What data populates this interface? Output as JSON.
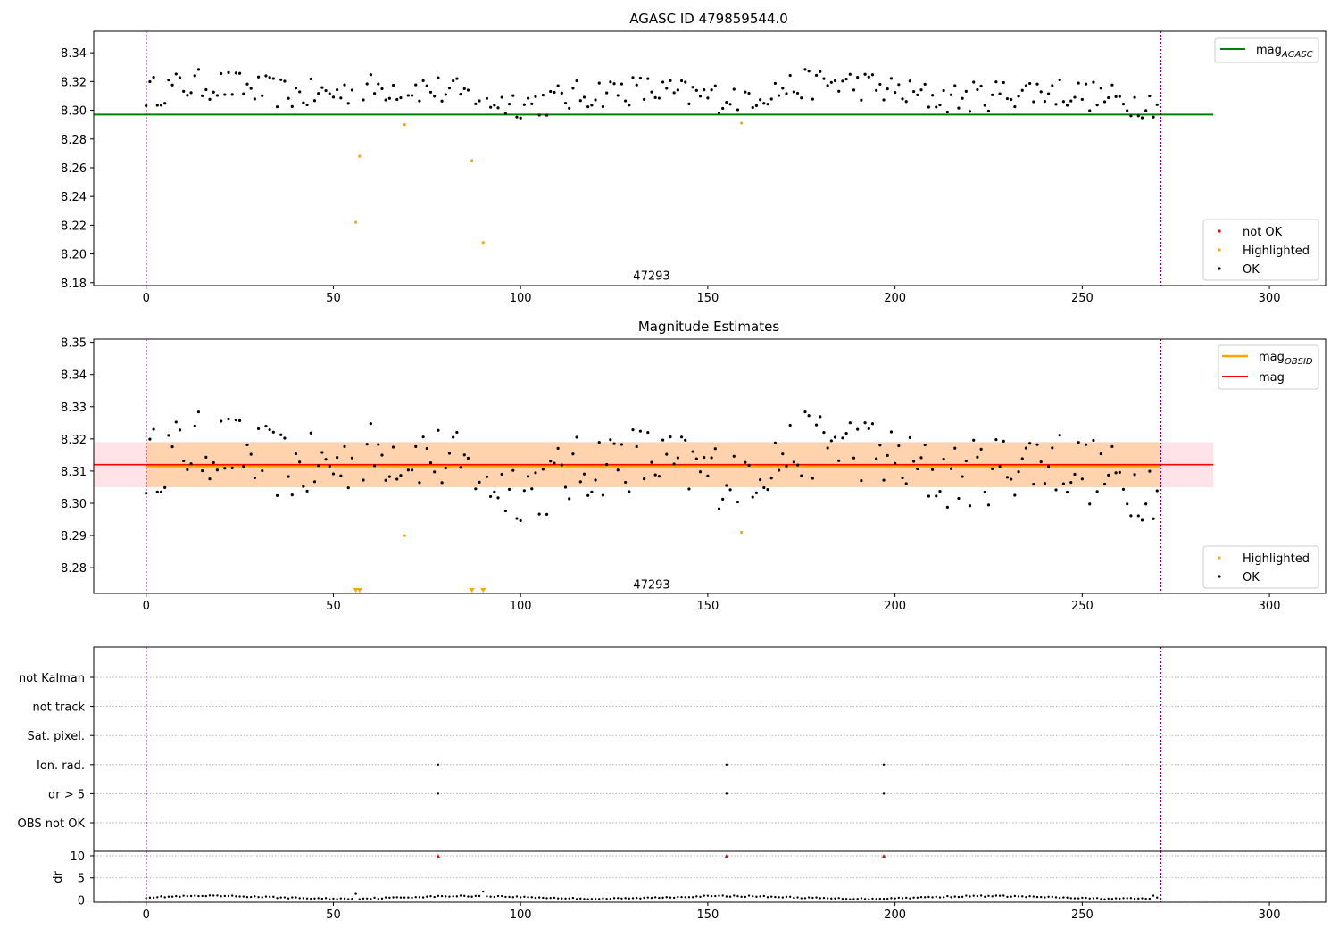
{
  "figure": {
    "background": "#ffffff"
  },
  "chart_data": [
    {
      "id": "agasc",
      "type": "scatter",
      "title": "AGASC ID 479859544.0",
      "xlim": [
        -14,
        315
      ],
      "ylim": [
        8.178,
        8.355
      ],
      "xticks": [
        0,
        50,
        100,
        150,
        200,
        250,
        300
      ],
      "yticks": [
        8.18,
        8.2,
        8.22,
        8.24,
        8.26,
        8.28,
        8.3,
        8.32,
        8.34
      ],
      "ytick_decimals": 2,
      "obsid_label": {
        "text": "47293",
        "x": 135,
        "y": 8.182
      },
      "vlines": [
        0,
        271
      ],
      "hlines": [
        {
          "name": "mag_AGASC",
          "y": 8.297,
          "x_from": -14,
          "x_to": 285,
          "color": "#008000"
        }
      ],
      "legend_top": [
        {
          "label": "mag",
          "sub": "AGASC",
          "color": "#008000",
          "kind": "line"
        }
      ],
      "legend_bottom": [
        {
          "label": "not OK",
          "color": "#ff0000",
          "kind": "dot"
        },
        {
          "label": "Highlighted",
          "color": "#ffa500",
          "kind": "dot"
        },
        {
          "label": "OK",
          "color": "#000000",
          "kind": "dot"
        }
      ],
      "highlighted": [
        [
          56,
          8.222
        ],
        [
          57,
          8.268
        ],
        [
          69,
          8.29
        ],
        [
          87,
          8.265
        ],
        [
          90,
          8.208
        ],
        [
          159,
          8.291
        ]
      ]
    },
    {
      "id": "estimates",
      "type": "scatter",
      "title": "Magnitude Estimates",
      "xlim": [
        -14,
        315
      ],
      "ylim": [
        8.272,
        8.351
      ],
      "xticks": [
        0,
        50,
        100,
        150,
        200,
        250,
        300
      ],
      "yticks": [
        8.28,
        8.29,
        8.3,
        8.31,
        8.32,
        8.33,
        8.34,
        8.35
      ],
      "ytick_decimals": 2,
      "obsid_label": {
        "text": "47293",
        "x": 135,
        "y": 8.2735
      },
      "vlines": [
        0,
        271
      ],
      "bands": [
        {
          "name": "mag band",
          "y0": 8.305,
          "y1": 8.319,
          "x_from": -14,
          "x_to": 285,
          "color": "#ffc0cb",
          "opacity": 0.45
        },
        {
          "name": "mag_OBSID band",
          "y0": 8.305,
          "y1": 8.319,
          "x_from": 0,
          "x_to": 271,
          "color": "#ffa500",
          "opacity": 0.25
        }
      ],
      "hlines": [
        {
          "name": "mag_OBSID",
          "y": 8.3115,
          "x_from": 0,
          "x_to": 271,
          "color": "#ffa500",
          "width": 2.5
        },
        {
          "name": "mag",
          "y": 8.312,
          "x_from": -14,
          "x_to": 285,
          "color": "#ff0000",
          "width": 1.6
        }
      ],
      "legend_top": [
        {
          "label": "mag",
          "sub": "OBSID",
          "color": "#ffa500",
          "kind": "line"
        },
        {
          "label": "mag",
          "sub": "",
          "color": "#ff0000",
          "kind": "line"
        }
      ],
      "legend_bottom": [
        {
          "label": "Highlighted",
          "color": "#ffa500",
          "kind": "dot"
        },
        {
          "label": "OK",
          "color": "#000000",
          "kind": "dot"
        }
      ],
      "highlighted": [
        [
          69,
          8.29
        ],
        [
          159,
          8.291
        ]
      ],
      "out_of_range_markers": [
        56,
        57,
        87,
        90
      ]
    },
    {
      "id": "flags",
      "type": "scatter",
      "ylabels": [
        "not Kalman",
        "not track",
        "Sat. pixel.",
        "Ion. rad.",
        "dr > 5",
        "OBS not OK"
      ],
      "xlim": [
        -14,
        315
      ],
      "vlines": [
        0,
        271
      ],
      "flag_points": [
        {
          "row": "Ion. rad.",
          "x": [
            78,
            155,
            197
          ]
        },
        {
          "row": "dr > 5",
          "x": [
            78,
            155,
            197
          ]
        }
      ]
    },
    {
      "id": "dr",
      "type": "scatter",
      "ylabel": "dr",
      "xlim": [
        -14,
        315
      ],
      "ylim": [
        -0.5,
        11
      ],
      "yticks": [
        0,
        5,
        10
      ],
      "xticks": [
        0,
        50,
        100,
        150,
        200,
        250,
        300
      ],
      "vlines": [
        0,
        271
      ],
      "markers": [
        [
          78,
          10
        ],
        [
          155,
          10
        ],
        [
          197,
          10
        ]
      ],
      "spikes": [
        [
          90,
          1.9
        ],
        [
          56,
          1.4
        ],
        [
          269,
          1.0
        ]
      ]
    }
  ],
  "series_gen": {
    "n": 271,
    "mag_base": 8.312,
    "dr_base": 0.6
  }
}
